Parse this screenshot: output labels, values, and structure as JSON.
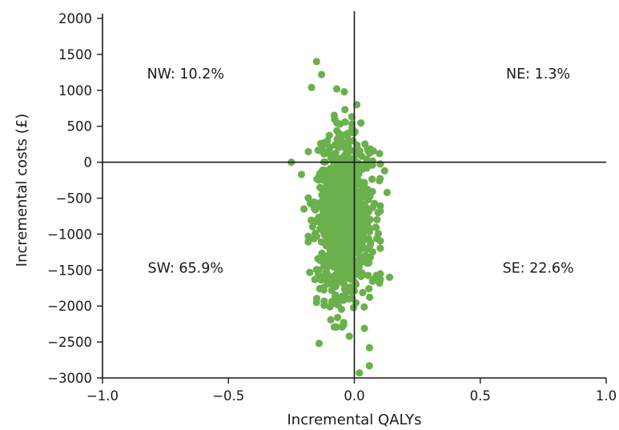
{
  "chart_data": {
    "type": "scatter",
    "xlabel": "Incremental QALYs",
    "ylabel": "Incremental costs (£)",
    "xlim": [
      -1.0,
      1.0
    ],
    "ylim": [
      -3000,
      2000
    ],
    "x_ticks": [
      -1.0,
      -0.5,
      0.0,
      0.5,
      1.0
    ],
    "x_tick_labels": [
      "−1.0",
      "−0.5",
      "0.0",
      "0.5",
      "1.0"
    ],
    "y_ticks": [
      2000,
      1500,
      1000,
      500,
      0,
      -500,
      -1000,
      -1500,
      -2000,
      -2500,
      -3000
    ],
    "y_tick_labels": [
      "2000",
      "1500",
      "1000",
      "500",
      "0",
      "−500",
      "−1000",
      "−1500",
      "−2000",
      "−2500",
      "−3000"
    ],
    "grid": false,
    "point_color": "#6ab04c",
    "quadrant_labels": [
      {
        "text": "NW: 10.2%",
        "x": -0.67,
        "y": 1230
      },
      {
        "text": "NE: 1.3%",
        "x": 0.73,
        "y": 1230
      },
      {
        "text": "SW: 65.9%",
        "x": -0.67,
        "y": -1470
      },
      {
        "text": "SE: 22.6%",
        "x": 0.73,
        "y": -1470
      }
    ],
    "cloud": {
      "count": 1000,
      "x_mean": -0.04,
      "x_sd": 0.055,
      "y_mean": -780,
      "y_sd": 560,
      "seed": 7
    },
    "extreme_points": [
      {
        "x": -0.15,
        "y": 1400
      },
      {
        "x": -0.13,
        "y": 1220
      },
      {
        "x": -0.17,
        "y": 1040
      },
      {
        "x": -0.07,
        "y": 1020
      },
      {
        "x": -0.04,
        "y": 980
      },
      {
        "x": 0.01,
        "y": 800
      },
      {
        "x": -0.25,
        "y": 0
      },
      {
        "x": 0.12,
        "y": -120
      },
      {
        "x": 0.13,
        "y": -420
      },
      {
        "x": 0.14,
        "y": -1600
      },
      {
        "x": 0.1,
        "y": -1680
      },
      {
        "x": -0.14,
        "y": -2520
      },
      {
        "x": 0.06,
        "y": -2580
      },
      {
        "x": 0.06,
        "y": -2830
      },
      {
        "x": 0.02,
        "y": -2930
      },
      {
        "x": -0.02,
        "y": -2420
      },
      {
        "x": 0.04,
        "y": -2310
      },
      {
        "x": -0.12,
        "y": -1990
      },
      {
        "x": -0.15,
        "y": -1950
      },
      {
        "x": -0.2,
        "y": -650
      },
      {
        "x": -0.21,
        "y": -170
      },
      {
        "x": 0.1,
        "y": 120
      }
    ]
  }
}
